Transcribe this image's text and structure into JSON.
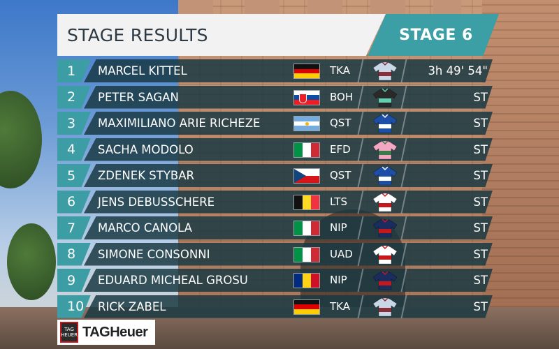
{
  "header": {
    "title": "STAGE RESULTS",
    "stage": "STAGE 6"
  },
  "results": [
    {
      "pos": "1",
      "name": "MARCEL KITTEL",
      "flag": "germany",
      "team": "TKA",
      "jersey": [
        "#c9d6e6",
        "#8a2d3b"
      ],
      "time": "3h 49' 54\""
    },
    {
      "pos": "2",
      "name": "PETER SAGAN",
      "flag": "slovakia",
      "team": "BOH",
      "jersey": [
        "#2a2a2a",
        "#5fd1b0"
      ],
      "time": "ST"
    },
    {
      "pos": "3",
      "name": "MAXIMILIANO ARIE RICHEZE",
      "flag": "argentina",
      "team": "QST",
      "jersey": [
        "#1d4fa8",
        "#ffffff"
      ],
      "time": "ST"
    },
    {
      "pos": "4",
      "name": "SACHA MODOLO",
      "flag": "italy",
      "team": "EFD",
      "jersey": [
        "#f3a7c2",
        "#3a7a4a"
      ],
      "time": "ST"
    },
    {
      "pos": "5",
      "name": "ZDENEK STYBAR",
      "flag": "czech",
      "team": "QST",
      "jersey": [
        "#1d4fa8",
        "#ffffff"
      ],
      "time": "ST"
    },
    {
      "pos": "6",
      "name": "JENS DEBUSSCHERE",
      "flag": "belgium",
      "team": "LTS",
      "jersey": [
        "#ffffff",
        "#c4181c"
      ],
      "time": "ST"
    },
    {
      "pos": "7",
      "name": "MARCO CANOLA",
      "flag": "italy",
      "team": "NIP",
      "jersey": [
        "#1b2c5e",
        "#c4181c"
      ],
      "time": "ST"
    },
    {
      "pos": "8",
      "name": "SIMONE CONSONNI",
      "flag": "italy",
      "team": "UAD",
      "jersey": [
        "#ffffff",
        "#c4181c"
      ],
      "time": "ST"
    },
    {
      "pos": "9",
      "name": "EDUARD MICHEAL GROSU",
      "flag": "romania",
      "team": "NIP",
      "jersey": [
        "#1b2c5e",
        "#c4181c"
      ],
      "time": "ST"
    },
    {
      "pos": "10",
      "name": "RICK ZABEL",
      "flag": "germany",
      "team": "TKA",
      "jersey": [
        "#c9d6e6",
        "#8a2d3b"
      ],
      "time": "ST"
    }
  ],
  "logo": {
    "brand": "TAGHeuer",
    "badge_top": "TAG",
    "badge_bottom": "HEUER"
  },
  "colors": {
    "accent": "#3b9fa5",
    "row_bg": "#183842",
    "header_bg": "#f2f2f2"
  }
}
